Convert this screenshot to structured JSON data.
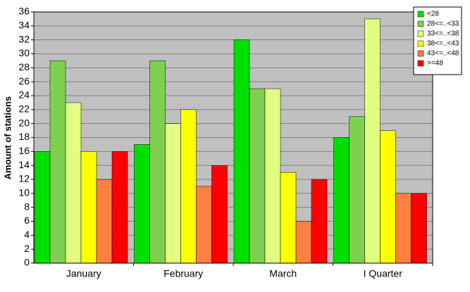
{
  "chart_data": {
    "type": "bar",
    "y_label": "Amount of stations",
    "categories": [
      "January",
      "February",
      "March",
      "I Quarter"
    ],
    "series": [
      {
        "name": "<28",
        "color": "#00e000",
        "values": [
          16,
          17,
          32,
          18
        ]
      },
      {
        "name": "28<=..<33",
        "color": "#80d050",
        "values": [
          29,
          29,
          25,
          21
        ]
      },
      {
        "name": "33<=..<38",
        "color": "#e0ff80",
        "values": [
          23,
          20,
          25,
          35
        ]
      },
      {
        "name": "38<=..<43",
        "color": "#ffff00",
        "values": [
          16,
          22,
          13,
          19
        ]
      },
      {
        "name": "43<=..<48",
        "color": "#ff8040",
        "values": [
          12,
          11,
          6,
          10
        ]
      },
      {
        "name": ">=48",
        "color": "#ff0000",
        "values": [
          16,
          14,
          12,
          10
        ]
      }
    ],
    "ylim": [
      0,
      36
    ],
    "yticks": [
      0,
      2,
      4,
      6,
      8,
      10,
      12,
      14,
      16,
      18,
      20,
      22,
      24,
      26,
      28,
      30,
      32,
      34,
      36
    ],
    "grid": true,
    "legend": "top-right"
  }
}
